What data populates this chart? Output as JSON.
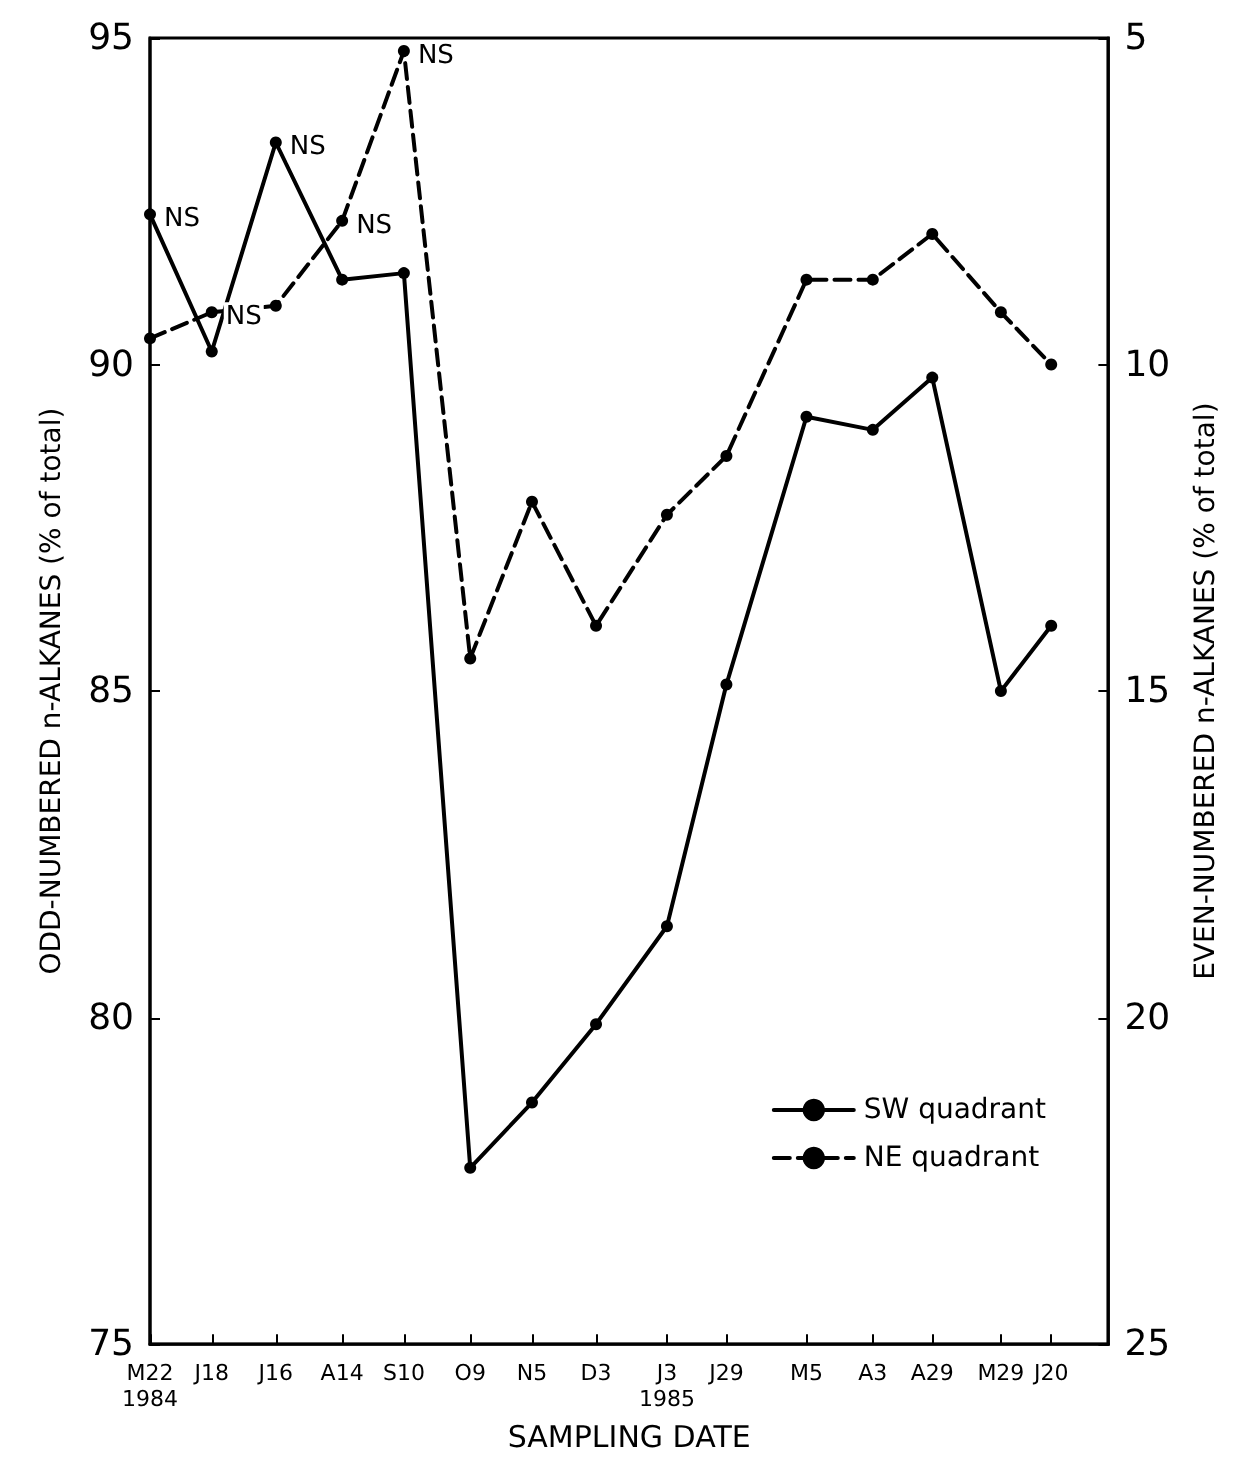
{
  "chart_data": {
    "type": "line",
    "xlabel": "SAMPLING DATE",
    "ylabel": "ODD-NUMBERED n-ALKANES (% of total)",
    "y2label": "EVEN-NUMBERED n-ALKANES (% of total)",
    "x": [
      "1984-05-22",
      "1984-06-18",
      "1984-07-16",
      "1984-08-14",
      "1984-09-10",
      "1984-10-09",
      "1984-11-05",
      "1984-12-03",
      "1985-01-03",
      "1985-01-29",
      "1985-03-05",
      "1985-04-03",
      "1985-04-29",
      "1985-05-29",
      "1985-06-20"
    ],
    "series": [
      {
        "name": "SW quadrant",
        "color": "#000000",
        "line_style": "solid",
        "values": [
          92.3,
          90.2,
          93.4,
          91.3,
          91.4,
          77.7,
          78.7,
          79.9,
          81.4,
          85.1,
          89.2,
          89.0,
          89.8,
          85.0,
          86.0
        ]
      },
      {
        "name": "NE quadrant",
        "color": "#000000",
        "line_style": "dashed",
        "values": [
          90.4,
          90.8,
          90.9,
          92.2,
          94.8,
          85.5,
          87.9,
          86.0,
          87.7,
          88.6,
          91.3,
          91.3,
          92.0,
          90.8,
          90.0
        ]
      }
    ],
    "xlim": [
      "1984-05-22",
      "1985-07-15"
    ],
    "xticks": [
      {
        "value": "1984-05-22",
        "label": "M22\n1984"
      },
      {
        "value": "1984-06-18",
        "label": "J18"
      },
      {
        "value": "1984-07-16",
        "label": "J16"
      },
      {
        "value": "1984-08-14",
        "label": "A14"
      },
      {
        "value": "1984-09-10",
        "label": "S10"
      },
      {
        "value": "1984-10-09",
        "label": "O9"
      },
      {
        "value": "1984-11-05",
        "label": "N5"
      },
      {
        "value": "1984-12-03",
        "label": "D3"
      },
      {
        "value": "1985-01-03",
        "label": "J3\n1985"
      },
      {
        "value": "1985-01-29",
        "label": "J29"
      },
      {
        "value": "1985-03-05",
        "label": "M5"
      },
      {
        "value": "1985-04-03",
        "label": "A3"
      },
      {
        "value": "1985-04-29",
        "label": "A29"
      },
      {
        "value": "1985-05-29",
        "label": "M29"
      },
      {
        "value": "1985-06-20",
        "label": "J20"
      }
    ],
    "ylim": [
      75,
      95
    ],
    "yticks": [
      75,
      80,
      85,
      90,
      95
    ],
    "y2lim": [
      25,
      5
    ],
    "y2ticks": [
      25,
      20,
      15,
      10,
      5
    ],
    "annotations": [
      {
        "text": "NS",
        "x": "1984-05-22",
        "y": 92.3
      },
      {
        "text": "NS",
        "x": "1984-06-18",
        "y": 90.8
      },
      {
        "text": "NS",
        "x": "1984-07-16",
        "y": 93.4
      },
      {
        "text": "NS",
        "x": "1984-08-14",
        "y": 92.2
      },
      {
        "text": "NS",
        "x": "1984-09-10",
        "y": 94.8
      }
    ],
    "marker": "circle",
    "grid": false,
    "legend": "bottom right"
  }
}
